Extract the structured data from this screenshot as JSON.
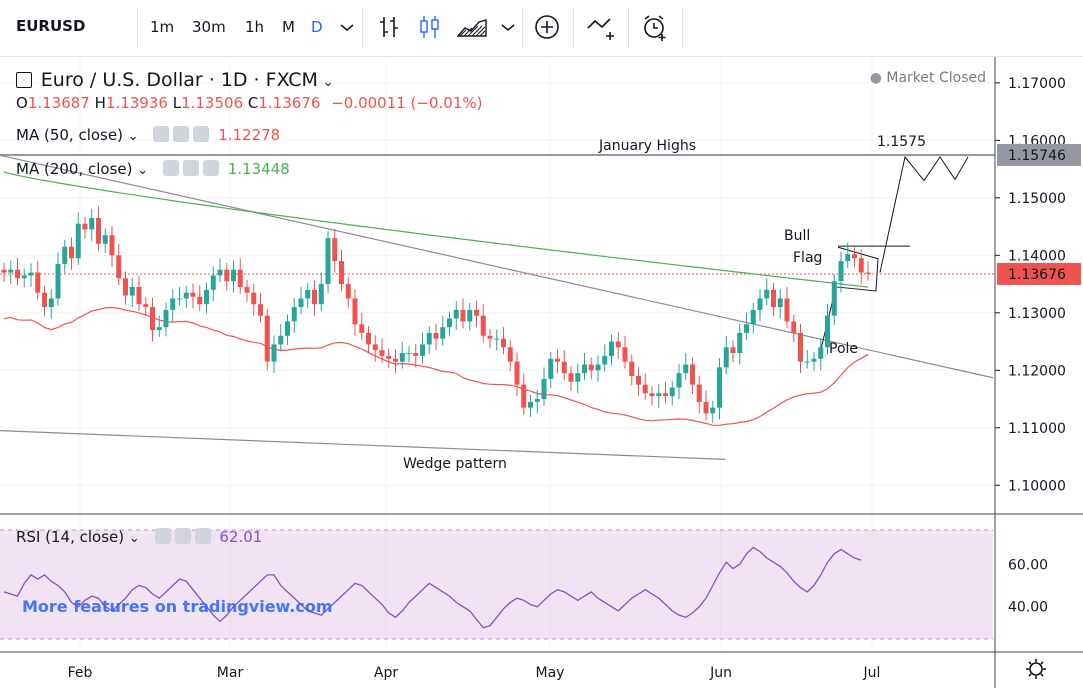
{
  "toolbar": {
    "symbol": "EURUSD",
    "intervals": [
      "1m",
      "30m",
      "1h",
      "M",
      "D"
    ],
    "active_interval": "D"
  },
  "header": {
    "title": "Euro / U.S. Dollar · 1D · FXCM",
    "status": "Market Closed",
    "ohlc": {
      "o_label": "O",
      "o": "1.13687",
      "h_label": "H",
      "h": "1.13936",
      "l_label": "L",
      "l": "1.13506",
      "c_label": "C",
      "c": "1.13676",
      "change": "−0.00011 (−0.01%)"
    }
  },
  "indicators": {
    "ma50": {
      "label": "MA (50, close)",
      "value": "1.12278",
      "color": "#ef5350"
    },
    "ma200": {
      "label": "MA (200, close)",
      "value": "1.13448",
      "color": "#4caf50"
    },
    "rsi": {
      "label": "RSI (14, close)",
      "value": "62.01",
      "color": "#7e57c2"
    }
  },
  "price_axis": {
    "ticks": [
      "1.17000",
      "1.16000",
      "1.15000",
      "1.14000",
      "1.13000",
      "1.12000",
      "1.11000",
      "1.10000"
    ],
    "highlight_high": "1.15746",
    "highlight_current": "1.13676"
  },
  "rsi_axis": {
    "ticks": [
      "60.00",
      "40.00"
    ]
  },
  "time_axis": {
    "ticks": [
      "Feb",
      "Mar",
      "Apr",
      "May",
      "Jun",
      "Jul"
    ]
  },
  "annotations": {
    "january_highs": "January Highs",
    "target": "1.1575",
    "bull": "Bull",
    "flag": "Flag",
    "pole": "Pole",
    "wedge": "Wedge pattern"
  },
  "watermark": "More features on tradingview.com",
  "colors": {
    "up": "#26a69a",
    "down": "#ef5350",
    "accent": "#2962ff"
  },
  "chart_data": {
    "type": "candlestick",
    "title": "Euro / U.S. Dollar · 1D · FXCM",
    "x_months": [
      "Feb",
      "Mar",
      "Apr",
      "May",
      "Jun",
      "Jul"
    ],
    "ylim": [
      1.095,
      1.1745
    ],
    "close_series": [
      1.137,
      1.1375,
      1.136,
      1.1365,
      1.137,
      1.1335,
      1.131,
      1.1325,
      1.1385,
      1.1415,
      1.1395,
      1.1455,
      1.1445,
      1.1465,
      1.142,
      1.1435,
      1.14,
      1.136,
      1.133,
      1.1345,
      1.1315,
      1.131,
      1.127,
      1.1275,
      1.1305,
      1.1325,
      1.1325,
      1.1335,
      1.1328,
      1.1315,
      1.134,
      1.1365,
      1.1375,
      1.1355,
      1.1375,
      1.1345,
      1.1335,
      1.1315,
      1.1295,
      1.1215,
      1.1245,
      1.126,
      1.1285,
      1.131,
      1.1325,
      1.134,
      1.1315,
      1.135,
      1.143,
      1.139,
      1.135,
      1.1325,
      1.128,
      1.1265,
      1.1245,
      1.1235,
      1.1225,
      1.122,
      1.1215,
      1.123,
      1.123,
      1.1225,
      1.1245,
      1.1265,
      1.1255,
      1.1275,
      1.129,
      1.1305,
      1.1285,
      1.1305,
      1.1295,
      1.126,
      1.1255,
      1.1255,
      1.124,
      1.1215,
      1.1175,
      1.1135,
      1.1145,
      1.115,
      1.1185,
      1.122,
      1.1215,
      1.1195,
      1.118,
      1.1195,
      1.121,
      1.12,
      1.121,
      1.1225,
      1.125,
      1.124,
      1.1215,
      1.119,
      1.1175,
      1.116,
      1.1155,
      1.116,
      1.1155,
      1.117,
      1.1195,
      1.121,
      1.1175,
      1.1145,
      1.1125,
      1.1135,
      1.1205,
      1.124,
      1.123,
      1.1265,
      1.128,
      1.1305,
      1.1325,
      1.134,
      1.131,
      1.1325,
      1.1285,
      1.1265,
      1.1215,
      1.1215,
      1.122,
      1.124,
      1.1295,
      1.1355,
      1.139,
      1.1402,
      1.1395,
      1.137,
      1.1368
    ],
    "ma50_end": 1.12278,
    "ma200_end": 1.13448,
    "rsi_end": 62.01,
    "rsi_ylim": [
      20,
      80
    ],
    "horizontal_level": 1.15746,
    "current_price": 1.13676
  }
}
